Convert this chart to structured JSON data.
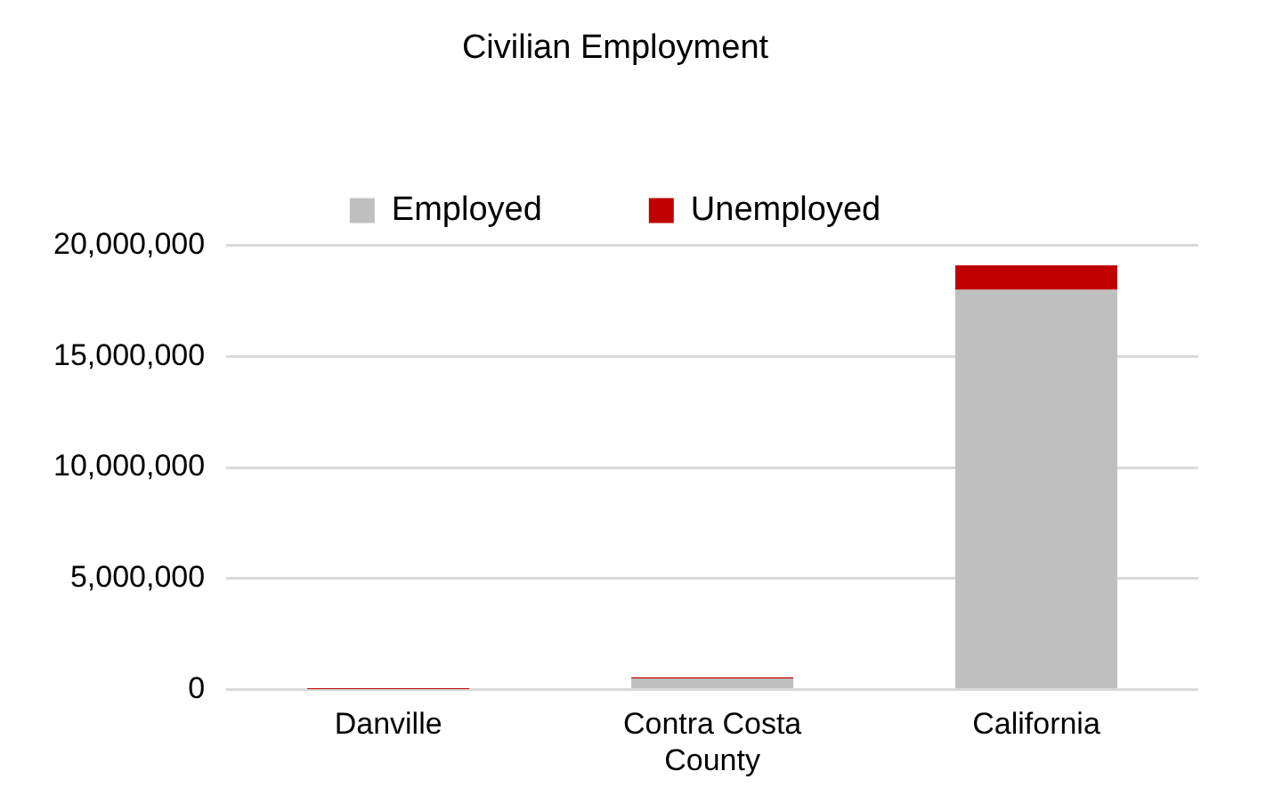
{
  "chart_data": {
    "type": "bar",
    "title": "Civilian Employment",
    "categories": [
      "Danville",
      "Contra Costa County",
      "California"
    ],
    "stacked": true,
    "series": [
      {
        "name": "Employed",
        "color": "#bfbfbf",
        "values": [
          null,
          500000,
          18000000
        ]
      },
      {
        "name": "Unemployed",
        "color": "#c00000",
        "values": [
          20000,
          50000,
          1100000
        ]
      }
    ],
    "ylim": [
      0,
      20000000
    ],
    "yticks": [
      {
        "value": 0,
        "label": "0"
      },
      {
        "value": 5000000,
        "label": "5,000,000"
      },
      {
        "value": 10000000,
        "label": "10,000,000"
      },
      {
        "value": 15000000,
        "label": "15,000,000"
      },
      {
        "value": 20000000,
        "label": "20,000,000"
      }
    ],
    "grid": "y",
    "legend": "top"
  }
}
